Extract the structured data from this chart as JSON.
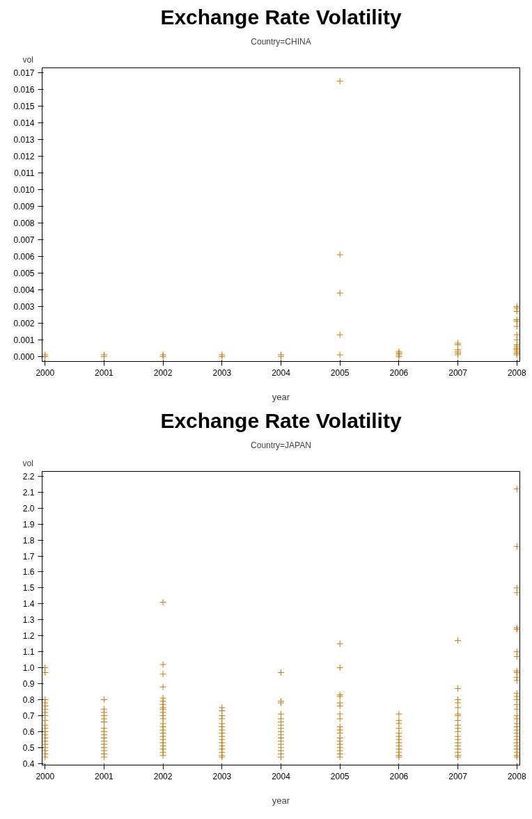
{
  "chart_data": [
    {
      "type": "scatter",
      "title": "Exchange Rate Volatility",
      "subtitle": "Country=CHINA",
      "xlabel": "year",
      "ylabel": "vol",
      "marker": "cross",
      "grid": false,
      "xlim": [
        1999.95,
        2008.05
      ],
      "xticks": [
        2000,
        2001,
        2002,
        2003,
        2004,
        2005,
        2006,
        2007,
        2008
      ],
      "ylim": [
        -0.0003,
        0.0173
      ],
      "yticks": [
        {
          "value": 0,
          "label": "0.000"
        },
        0.001,
        0.002,
        0.003,
        0.004,
        0.005,
        0.006,
        0.007,
        0.008,
        0.009,
        {
          "value": 0.01,
          "label": "0.010"
        },
        0.011,
        0.012,
        0.013,
        0.014,
        0.015,
        0.016,
        0.017
      ],
      "series": [
        {
          "color": "#cc7a00",
          "x": [
            2000,
            2000,
            2001,
            2001,
            2002,
            2002,
            2003,
            2003,
            2004,
            2004,
            2005,
            2005,
            2005,
            2005,
            2005,
            2006,
            2006,
            2006,
            2006,
            2007,
            2007,
            2007,
            2007,
            2007,
            2007,
            2008,
            2008,
            2008,
            2008,
            2008,
            2008,
            2008,
            2008,
            2008,
            2008,
            2008,
            2008,
            2008,
            2008,
            2008
          ],
          "values": [
            0.0001,
            0,
            0.0001,
            0,
            0.0001,
            0,
            0.0001,
            0,
            0.0001,
            0,
            0.0165,
            0.0061,
            0.0038,
            0.0013,
            0.0001,
            0.0003,
            0.0002,
            0.0001,
            0,
            0.0008,
            0.0007,
            0.0004,
            0.0003,
            0.0002,
            0.0001,
            0.003,
            0.0029,
            0.0027,
            0.0022,
            0.0021,
            0.0018,
            0.0013,
            0.001,
            0.0007,
            0.0006,
            0.0005,
            0.0004,
            0.0003,
            0.0002,
            0.0001
          ]
        }
      ]
    },
    {
      "type": "scatter",
      "title": "Exchange Rate Volatility",
      "subtitle": "Country=JAPAN",
      "xlabel": "year",
      "ylabel": "vol",
      "marker": "cross",
      "grid": false,
      "xlim": [
        1999.95,
        2008.05
      ],
      "xticks": [
        2000,
        2001,
        2002,
        2003,
        2004,
        2005,
        2006,
        2007,
        2008
      ],
      "ylim": [
        0.39,
        2.23
      ],
      "yticks": [
        0.4,
        0.5,
        0.6,
        0.7,
        0.8,
        0.9,
        {
          "value": 1,
          "label": "1.0"
        },
        1.1,
        1.2,
        1.3,
        1.4,
        1.5,
        1.6,
        1.7,
        1.8,
        1.9,
        {
          "value": 2,
          "label": "2.0"
        },
        2.1,
        2.2
      ],
      "series": [
        {
          "color": "#cc7a00",
          "x": [
            2000,
            2000,
            2000,
            2000,
            2000,
            2000,
            2000,
            2000,
            2000,
            2000,
            2000,
            2000,
            2000,
            2000,
            2000,
            2000,
            2000,
            2000,
            2000,
            2000,
            2001,
            2001,
            2001,
            2001,
            2001,
            2001,
            2001,
            2001,
            2001,
            2001,
            2001,
            2001,
            2001,
            2001,
            2001,
            2001,
            2002,
            2002,
            2002,
            2002,
            2002,
            2002,
            2002,
            2002,
            2002,
            2002,
            2002,
            2002,
            2002,
            2002,
            2002,
            2002,
            2002,
            2002,
            2002,
            2002,
            2002,
            2002,
            2002,
            2003,
            2003,
            2003,
            2003,
            2003,
            2003,
            2003,
            2003,
            2003,
            2003,
            2003,
            2003,
            2003,
            2003,
            2003,
            2003,
            2004,
            2004,
            2004,
            2004,
            2004,
            2004,
            2004,
            2004,
            2004,
            2004,
            2004,
            2004,
            2004,
            2004,
            2004,
            2004,
            2004,
            2005,
            2005,
            2005,
            2005,
            2005,
            2005,
            2005,
            2005,
            2005,
            2005,
            2005,
            2005,
            2005,
            2005,
            2005,
            2005,
            2005,
            2005,
            2006,
            2006,
            2006,
            2006,
            2006,
            2006,
            2006,
            2006,
            2006,
            2006,
            2006,
            2006,
            2006,
            2007,
            2007,
            2007,
            2007,
            2007,
            2007,
            2007,
            2007,
            2007,
            2007,
            2007,
            2007,
            2007,
            2007,
            2007,
            2007,
            2007,
            2007,
            2007,
            2008,
            2008,
            2008,
            2008,
            2008,
            2008,
            2008,
            2008,
            2008,
            2008,
            2008,
            2008,
            2008,
            2008,
            2008,
            2008,
            2008,
            2008,
            2008,
            2008,
            2008,
            2008,
            2008,
            2008,
            2008,
            2008,
            2008,
            2008,
            2008,
            2008,
            2008
          ],
          "values": [
            1.0,
            0.97,
            0.8,
            0.78,
            0.76,
            0.74,
            0.72,
            0.7,
            0.67,
            0.64,
            0.62,
            0.6,
            0.58,
            0.56,
            0.54,
            0.52,
            0.5,
            0.48,
            0.46,
            0.44,
            0.8,
            0.74,
            0.72,
            0.7,
            0.68,
            0.66,
            0.62,
            0.6,
            0.58,
            0.56,
            0.54,
            0.52,
            0.5,
            0.48,
            0.46,
            0.44,
            1.41,
            1.02,
            0.96,
            0.88,
            0.81,
            0.79,
            0.77,
            0.75,
            0.74,
            0.72,
            0.7,
            0.68,
            0.65,
            0.63,
            0.61,
            0.59,
            0.57,
            0.55,
            0.53,
            0.51,
            0.49,
            0.47,
            0.45,
            0.75,
            0.73,
            0.7,
            0.68,
            0.65,
            0.63,
            0.61,
            0.59,
            0.57,
            0.55,
            0.53,
            0.51,
            0.49,
            0.47,
            0.45,
            0.44,
            0.97,
            0.79,
            0.78,
            0.71,
            0.68,
            0.66,
            0.64,
            0.62,
            0.6,
            0.58,
            0.56,
            0.54,
            0.52,
            0.5,
            0.48,
            0.46,
            0.44,
            1.15,
            1.0,
            0.83,
            0.82,
            0.78,
            0.76,
            0.71,
            0.68,
            0.63,
            0.61,
            0.59,
            0.56,
            0.54,
            0.52,
            0.5,
            0.48,
            0.46,
            0.44,
            0.71,
            0.67,
            0.65,
            0.62,
            0.59,
            0.57,
            0.55,
            0.53,
            0.51,
            0.49,
            0.47,
            0.45,
            0.44,
            1.17,
            0.87,
            0.8,
            0.78,
            0.75,
            0.71,
            0.7,
            0.67,
            0.64,
            0.62,
            0.6,
            0.57,
            0.55,
            0.53,
            0.51,
            0.49,
            0.47,
            0.45,
            0.44,
            2.12,
            1.76,
            1.5,
            1.47,
            1.25,
            1.24,
            1.1,
            1.07,
            0.98,
            0.97,
            0.94,
            0.92,
            0.84,
            0.82,
            0.8,
            0.77,
            0.74,
            0.7,
            0.68,
            0.65,
            0.63,
            0.61,
            0.59,
            0.57,
            0.55,
            0.53,
            0.51,
            0.49,
            0.47,
            0.45,
            0.44
          ]
        }
      ]
    }
  ]
}
